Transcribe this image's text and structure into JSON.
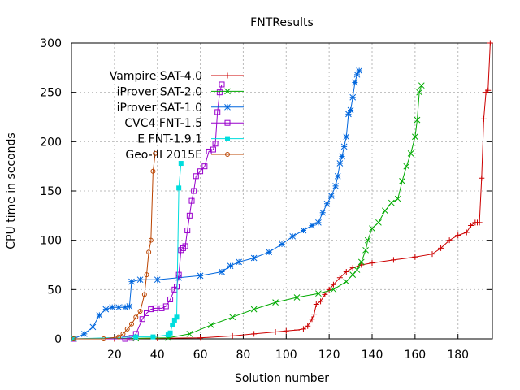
{
  "chart_data": {
    "type": "line",
    "title": "FNTResults",
    "xlabel": "Solution number",
    "ylabel": "CPU time in seconds",
    "xlim": [
      0,
      196
    ],
    "ylim": [
      0,
      300
    ],
    "xticks": [
      20,
      40,
      60,
      80,
      100,
      120,
      140,
      160,
      180
    ],
    "yticks": [
      0,
      50,
      100,
      150,
      200,
      250,
      300
    ],
    "grid": true,
    "legend_position": "top-left",
    "series": [
      {
        "name": "Vampire SAT-4.0",
        "color": "#cc0000",
        "marker": "plus",
        "points": [
          [
            1,
            0
          ],
          [
            20,
            0
          ],
          [
            40,
            0.5
          ],
          [
            60,
            1
          ],
          [
            75,
            3
          ],
          [
            85,
            5
          ],
          [
            95,
            7
          ],
          [
            100,
            8
          ],
          [
            105,
            9
          ],
          [
            108,
            10
          ],
          [
            110,
            13
          ],
          [
            112,
            20
          ],
          [
            113,
            25
          ],
          [
            114,
            35
          ],
          [
            116,
            38
          ],
          [
            118,
            45
          ],
          [
            120,
            50
          ],
          [
            122,
            55
          ],
          [
            125,
            62
          ],
          [
            128,
            68
          ],
          [
            131,
            72
          ],
          [
            135,
            75
          ],
          [
            140,
            77
          ],
          [
            150,
            80
          ],
          [
            160,
            83
          ],
          [
            168,
            86
          ],
          [
            172,
            92
          ],
          [
            176,
            100
          ],
          [
            180,
            105
          ],
          [
            184,
            108
          ],
          [
            186,
            115
          ],
          [
            188,
            118
          ],
          [
            189,
            118
          ],
          [
            190,
            118
          ],
          [
            191,
            163
          ],
          [
            192,
            223
          ],
          [
            193,
            250
          ],
          [
            194,
            252
          ],
          [
            195,
            300
          ]
        ]
      },
      {
        "name": "iProver SAT-2.0",
        "color": "#00aa00",
        "marker": "cross",
        "points": [
          [
            1,
            0
          ],
          [
            30,
            0.5
          ],
          [
            45,
            1
          ],
          [
            55,
            5
          ],
          [
            65,
            14
          ],
          [
            75,
            22
          ],
          [
            85,
            30
          ],
          [
            95,
            37
          ],
          [
            105,
            42
          ],
          [
            115,
            46
          ],
          [
            122,
            50
          ],
          [
            128,
            58
          ],
          [
            131,
            65
          ],
          [
            133,
            70
          ],
          [
            135,
            78
          ],
          [
            137,
            90
          ],
          [
            138,
            100
          ],
          [
            140,
            112
          ],
          [
            143,
            118
          ],
          [
            146,
            130
          ],
          [
            149,
            138
          ],
          [
            152,
            142
          ],
          [
            154,
            160
          ],
          [
            156,
            175
          ],
          [
            158,
            188
          ],
          [
            160,
            205
          ],
          [
            161,
            222
          ],
          [
            162,
            250
          ],
          [
            163,
            257
          ]
        ]
      },
      {
        "name": "iProver SAT-1.0",
        "color": "#0066dd",
        "marker": "star",
        "points": [
          [
            1,
            0
          ],
          [
            6,
            5
          ],
          [
            10,
            12
          ],
          [
            13,
            24
          ],
          [
            16,
            30
          ],
          [
            19,
            32
          ],
          [
            22,
            32
          ],
          [
            25,
            32
          ],
          [
            27,
            33
          ],
          [
            28,
            58
          ],
          [
            32,
            60
          ],
          [
            40,
            60
          ],
          [
            50,
            62
          ],
          [
            60,
            64
          ],
          [
            70,
            68
          ],
          [
            74,
            74
          ],
          [
            78,
            78
          ],
          [
            85,
            82
          ],
          [
            92,
            88
          ],
          [
            98,
            96
          ],
          [
            103,
            104
          ],
          [
            108,
            110
          ],
          [
            112,
            115
          ],
          [
            115,
            118
          ],
          [
            117,
            128
          ],
          [
            119,
            137
          ],
          [
            121,
            145
          ],
          [
            123,
            155
          ],
          [
            124,
            165
          ],
          [
            125,
            178
          ],
          [
            126,
            185
          ],
          [
            127,
            195
          ],
          [
            128,
            205
          ],
          [
            129,
            228
          ],
          [
            130,
            232
          ],
          [
            131,
            245
          ],
          [
            132,
            260
          ],
          [
            133,
            268
          ],
          [
            134,
            272
          ]
        ]
      },
      {
        "name": "CVC4 FNT-1.5",
        "color": "#9900cc",
        "marker": "square",
        "points": [
          [
            1,
            0
          ],
          [
            25,
            0
          ],
          [
            28,
            1
          ],
          [
            30,
            5
          ],
          [
            33,
            20
          ],
          [
            35,
            26
          ],
          [
            37,
            30
          ],
          [
            39,
            31
          ],
          [
            42,
            31
          ],
          [
            44,
            33
          ],
          [
            46,
            40
          ],
          [
            48,
            50
          ],
          [
            49,
            53
          ],
          [
            50,
            65
          ],
          [
            51,
            90
          ],
          [
            52,
            92
          ],
          [
            53,
            94
          ],
          [
            54,
            110
          ],
          [
            55,
            125
          ],
          [
            56,
            140
          ],
          [
            57,
            150
          ],
          [
            58,
            165
          ],
          [
            60,
            170
          ],
          [
            62,
            175
          ],
          [
            64,
            190
          ],
          [
            66,
            192
          ],
          [
            67,
            198
          ],
          [
            68,
            230
          ],
          [
            69,
            250
          ],
          [
            70,
            258
          ]
        ]
      },
      {
        "name": "E FNT-1.9.1",
        "color": "#00dddd",
        "marker": "filled-square",
        "points": [
          [
            1,
            0
          ],
          [
            30,
            2
          ],
          [
            38,
            2
          ],
          [
            45,
            4
          ],
          [
            46,
            6
          ],
          [
            47,
            14
          ],
          [
            48,
            19
          ],
          [
            49,
            22
          ],
          [
            50,
            153
          ],
          [
            51,
            178
          ]
        ]
      },
      {
        "name": "Geo-III 2015E",
        "color": "#bb4400",
        "marker": "circle",
        "points": [
          [
            1,
            0
          ],
          [
            15,
            0
          ],
          [
            22,
            2
          ],
          [
            24,
            5
          ],
          [
            26,
            10
          ],
          [
            28,
            15
          ],
          [
            30,
            22
          ],
          [
            32,
            28
          ],
          [
            34,
            45
          ],
          [
            35,
            65
          ],
          [
            36,
            88
          ],
          [
            37,
            100
          ],
          [
            38,
            170
          ],
          [
            39,
            188
          ]
        ]
      }
    ]
  }
}
